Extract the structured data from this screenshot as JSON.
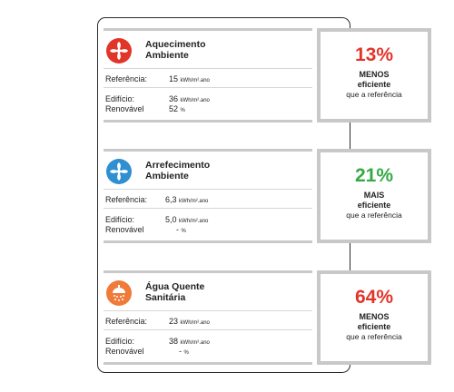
{
  "colors": {
    "red": "#e2352a",
    "green": "#35a946",
    "blue": "#2f8fd0",
    "orange": "#f07a3a",
    "border_grey": "#c8c8c8"
  },
  "sections": [
    {
      "icon": "fan-icon-red",
      "title_line1": "Aquecimento",
      "title_line2": "Ambiente",
      "referencia_label": "Referência:",
      "referencia_value": "15",
      "referencia_unit": "kWh/m².ano",
      "edificio_label": "Edifício:",
      "edificio_value": "36",
      "edificio_unit": "kWh/m².ano",
      "renovavel_label": "Renovável",
      "renovavel_value": "52",
      "renovavel_unit": "%",
      "percent": "13%",
      "comparison_word": "MENOS",
      "efficiency_word": "eficiente",
      "reference_text": "que a referência"
    },
    {
      "icon": "fan-icon-blue",
      "title_line1": "Arrefecimento",
      "title_line2": "Ambiente",
      "referencia_label": "Referência:",
      "referencia_value": "6,3",
      "referencia_unit": "kWh/m².ano",
      "edificio_label": "Edifício:",
      "edificio_value": "5,0",
      "edificio_unit": "kWh/m².ano",
      "renovavel_label": "Renovável",
      "renovavel_value": "-",
      "renovavel_unit": "%",
      "percent": "21%",
      "comparison_word": "MAIS",
      "efficiency_word": "eficiente",
      "reference_text": "que a referência"
    },
    {
      "icon": "shower-icon-orange",
      "title_line1": "Água Quente",
      "title_line2": "Sanitária",
      "referencia_label": "Referência:",
      "referencia_value": "23",
      "referencia_unit": "kWh/m².ano",
      "edificio_label": "Edifício:",
      "edificio_value": "38",
      "edificio_unit": "kWh/m².ano",
      "renovavel_label": "Renovável",
      "renovavel_value": "-",
      "renovavel_unit": "%",
      "percent": "64%",
      "comparison_word": "MENOS",
      "efficiency_word": "eficiente",
      "reference_text": "que a referência"
    }
  ]
}
